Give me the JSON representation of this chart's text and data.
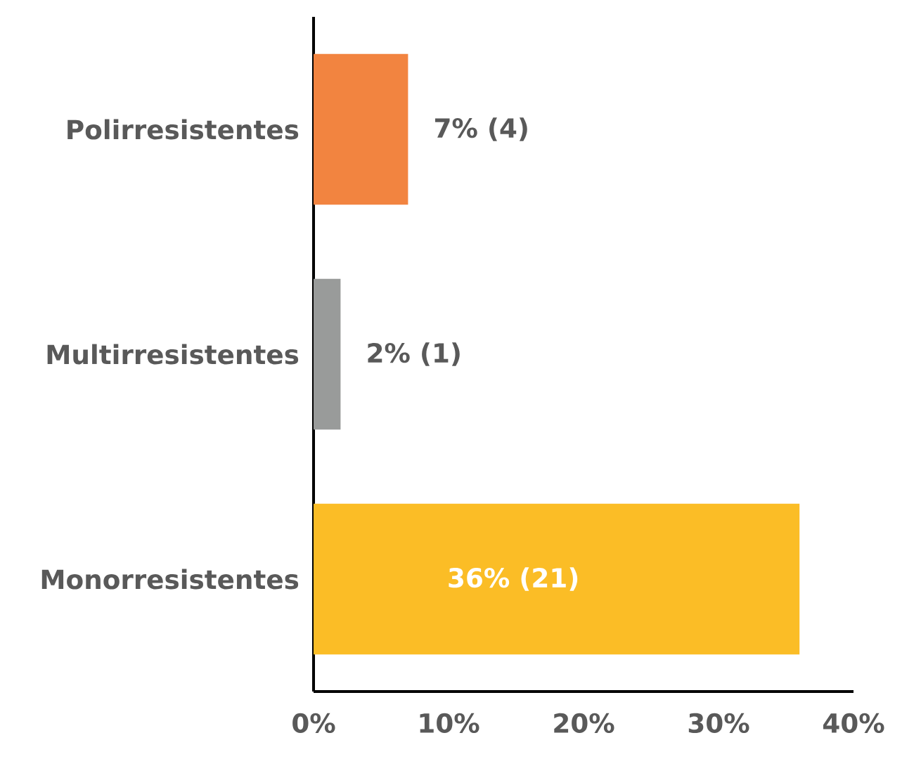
{
  "chart_data": {
    "type": "bar",
    "orientation": "horizontal",
    "categories": [
      "Polirresistentes",
      "Multirresistentes",
      "Monorresistentes"
    ],
    "values": [
      7,
      2,
      36
    ],
    "colors": [
      "#f28440",
      "#999b9a",
      "#fbbd26"
    ],
    "value_labels": [
      "7% (4)",
      "2% (1)",
      "36% (21)"
    ],
    "xlim": [
      0,
      40
    ],
    "xticks": [
      {
        "value": 0,
        "label": "0%"
      },
      {
        "value": 10,
        "label": "10%"
      },
      {
        "value": 20,
        "label": "20%"
      },
      {
        "value": 30,
        "label": "30%"
      },
      {
        "value": 40,
        "label": "40%"
      }
    ],
    "grid": false
  }
}
